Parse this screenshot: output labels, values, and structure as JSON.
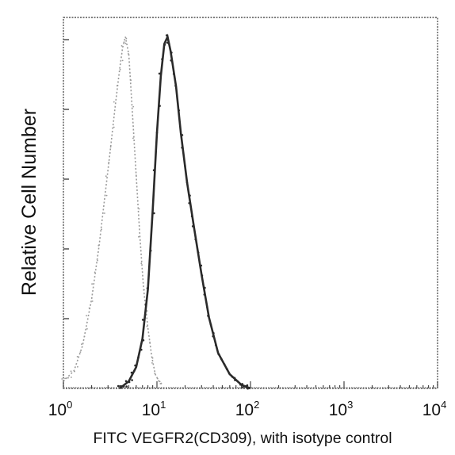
{
  "chart_data": {
    "type": "area",
    "title": "",
    "xlabel": "FITC VEGFR2(CD309), with isotype control",
    "ylabel": "Relative Cell Number",
    "x_scale": "log",
    "xlim": [
      1,
      10000
    ],
    "ylim": [
      0,
      100
    ],
    "x_ticks": [
      {
        "base": "10",
        "exp": "0",
        "value": 1
      },
      {
        "base": "10",
        "exp": "1",
        "value": 10
      },
      {
        "base": "10",
        "exp": "2",
        "value": 100
      },
      {
        "base": "10",
        "exp": "3",
        "value": 1000
      },
      {
        "base": "10",
        "exp": "4",
        "value": 10000
      }
    ],
    "grid": false,
    "series": [
      {
        "color": "#9a9a9a",
        "style": "dotted",
        "x": [
          1.0,
          1.3,
          1.6,
          2.0,
          2.4,
          2.8,
          3.2,
          3.6,
          4.0,
          4.3,
          4.6,
          5.0,
          5.4,
          6.0,
          6.6,
          7.2,
          8.0,
          8.8,
          9.6,
          10.5,
          11.5
        ],
        "y": [
          2,
          5,
          12,
          25,
          40,
          55,
          68,
          80,
          90,
          96,
          99,
          94,
          80,
          60,
          42,
          28,
          17,
          9,
          4,
          2,
          1
        ]
      },
      {
        "color": "#2a2a2a",
        "style": "solid",
        "x": [
          4.0,
          5.0,
          6.0,
          7.0,
          8.0,
          9.0,
          10.0,
          11.0,
          12.0,
          13.0,
          14.0,
          16.0,
          18.0,
          21.0,
          25.0,
          30.0,
          36.0,
          45.0,
          60.0,
          80.0,
          100.0
        ],
        "y": [
          0,
          2,
          6,
          14,
          28,
          50,
          72,
          88,
          97,
          99,
          95,
          85,
          72,
          58,
          45,
          32,
          20,
          10,
          4,
          1,
          0
        ]
      }
    ]
  }
}
